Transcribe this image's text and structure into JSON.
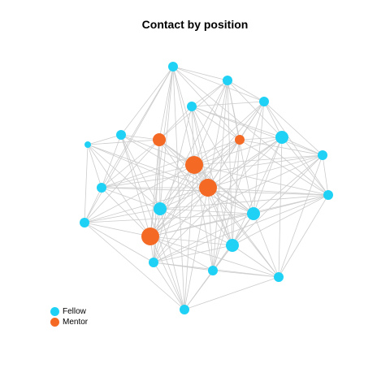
{
  "title": "Contact by position",
  "colors": {
    "fellow": "#1fd2f5",
    "mentor": "#f46a25",
    "edge": "#cccccc"
  },
  "legend": [
    {
      "label": "Fellow",
      "group": "fellow"
    },
    {
      "label": "Mentor",
      "group": "mentor"
    }
  ],
  "nodes": [
    {
      "id": "n1",
      "group": "fellow",
      "weight": 1
    },
    {
      "id": "n2",
      "group": "fellow",
      "weight": 1
    },
    {
      "id": "n3",
      "group": "fellow",
      "weight": 1
    },
    {
      "id": "n4",
      "group": "fellow",
      "weight": 1
    },
    {
      "id": "n5",
      "group": "fellow",
      "weight": 1
    },
    {
      "id": "n6",
      "group": "fellow",
      "weight": 2
    },
    {
      "id": "n7",
      "group": "fellow",
      "weight": 0
    },
    {
      "id": "n8",
      "group": "fellow",
      "weight": 1
    },
    {
      "id": "n9",
      "group": "fellow",
      "weight": 1
    },
    {
      "id": "n10",
      "group": "fellow",
      "weight": 1
    },
    {
      "id": "n11",
      "group": "fellow",
      "weight": 2
    },
    {
      "id": "n12",
      "group": "fellow",
      "weight": 2
    },
    {
      "id": "n13",
      "group": "fellow",
      "weight": 1
    },
    {
      "id": "n14",
      "group": "fellow",
      "weight": 2
    },
    {
      "id": "n15",
      "group": "fellow",
      "weight": 1
    },
    {
      "id": "n16",
      "group": "fellow",
      "weight": 1
    },
    {
      "id": "n17",
      "group": "fellow",
      "weight": 1
    },
    {
      "id": "n18",
      "group": "fellow",
      "weight": 1
    },
    {
      "id": "m1",
      "group": "mentor",
      "weight": 2
    },
    {
      "id": "m2",
      "group": "mentor",
      "weight": 1
    },
    {
      "id": "m3",
      "group": "mentor",
      "weight": 3
    },
    {
      "id": "m4",
      "group": "mentor",
      "weight": 3
    },
    {
      "id": "m5",
      "group": "mentor",
      "weight": 3
    }
  ],
  "edges": [
    [
      "m1",
      "n1"
    ],
    [
      "m1",
      "n2"
    ],
    [
      "m1",
      "n4"
    ],
    [
      "m1",
      "n5"
    ],
    [
      "m1",
      "n7"
    ],
    [
      "m1",
      "n8"
    ],
    [
      "m1",
      "n9"
    ],
    [
      "m1",
      "n11"
    ],
    [
      "m1",
      "n12"
    ],
    [
      "m1",
      "n14"
    ],
    [
      "m1",
      "m3"
    ],
    [
      "m1",
      "m4"
    ],
    [
      "m1",
      "m5"
    ],
    [
      "m1",
      "n15"
    ],
    [
      "m2",
      "n1"
    ],
    [
      "m2",
      "n2"
    ],
    [
      "m2",
      "n3"
    ],
    [
      "m2",
      "n4"
    ],
    [
      "m2",
      "n6"
    ],
    [
      "m2",
      "n8"
    ],
    [
      "m2",
      "n10"
    ],
    [
      "m2",
      "n11"
    ],
    [
      "m2",
      "n13"
    ],
    [
      "m2",
      "n14"
    ],
    [
      "m2",
      "m3"
    ],
    [
      "m2",
      "m4"
    ],
    [
      "m2",
      "m5"
    ],
    [
      "m2",
      "n17"
    ],
    [
      "m3",
      "n1"
    ],
    [
      "m3",
      "n2"
    ],
    [
      "m3",
      "n3"
    ],
    [
      "m3",
      "n4"
    ],
    [
      "m3",
      "n5"
    ],
    [
      "m3",
      "n6"
    ],
    [
      "m3",
      "n8"
    ],
    [
      "m3",
      "n9"
    ],
    [
      "m3",
      "n10"
    ],
    [
      "m3",
      "n11"
    ],
    [
      "m3",
      "n12"
    ],
    [
      "m3",
      "n13"
    ],
    [
      "m3",
      "n14"
    ],
    [
      "m3",
      "n15"
    ],
    [
      "m3",
      "n16"
    ],
    [
      "m3",
      "n17"
    ],
    [
      "m3",
      "n18"
    ],
    [
      "m3",
      "m4"
    ],
    [
      "m3",
      "m5"
    ],
    [
      "m4",
      "n1"
    ],
    [
      "m4",
      "n2"
    ],
    [
      "m4",
      "n3"
    ],
    [
      "m4",
      "n4"
    ],
    [
      "m4",
      "n6"
    ],
    [
      "m4",
      "n7"
    ],
    [
      "m4",
      "n8"
    ],
    [
      "m4",
      "n9"
    ],
    [
      "m4",
      "n10"
    ],
    [
      "m4",
      "n11"
    ],
    [
      "m4",
      "n12"
    ],
    [
      "m4",
      "n13"
    ],
    [
      "m4",
      "n14"
    ],
    [
      "m4",
      "n15"
    ],
    [
      "m4",
      "n16"
    ],
    [
      "m4",
      "n17"
    ],
    [
      "m4",
      "n18"
    ],
    [
      "m4",
      "m5"
    ],
    [
      "m5",
      "n1"
    ],
    [
      "m5",
      "n3"
    ],
    [
      "m5",
      "n5"
    ],
    [
      "m5",
      "n6"
    ],
    [
      "m5",
      "n7"
    ],
    [
      "m5",
      "n8"
    ],
    [
      "m5",
      "n9"
    ],
    [
      "m5",
      "n10"
    ],
    [
      "m5",
      "n11"
    ],
    [
      "m5",
      "n12"
    ],
    [
      "m5",
      "n13"
    ],
    [
      "m5",
      "n14"
    ],
    [
      "m5",
      "n15"
    ],
    [
      "m5",
      "n16"
    ],
    [
      "m5",
      "n17"
    ],
    [
      "m5",
      "n18"
    ],
    [
      "n1",
      "n2"
    ],
    [
      "n1",
      "n3"
    ],
    [
      "n1",
      "n5"
    ],
    [
      "n1",
      "n8"
    ],
    [
      "n1",
      "n9"
    ],
    [
      "n1",
      "n11"
    ],
    [
      "n1",
      "n13"
    ],
    [
      "n1",
      "n16"
    ],
    [
      "n2",
      "n3"
    ],
    [
      "n2",
      "n4"
    ],
    [
      "n2",
      "n6"
    ],
    [
      "n2",
      "n11"
    ],
    [
      "n2",
      "n12"
    ],
    [
      "n2",
      "n14"
    ],
    [
      "n2",
      "n17"
    ],
    [
      "n3",
      "n4"
    ],
    [
      "n3",
      "n6"
    ],
    [
      "n3",
      "n10"
    ],
    [
      "n3",
      "n12"
    ],
    [
      "n3",
      "n13"
    ],
    [
      "n3",
      "n17"
    ],
    [
      "n4",
      "n6"
    ],
    [
      "n4",
      "n10"
    ],
    [
      "n4",
      "n12"
    ],
    [
      "n4",
      "n14"
    ],
    [
      "n4",
      "n15"
    ],
    [
      "n5",
      "n7"
    ],
    [
      "n5",
      "n8"
    ],
    [
      "n5",
      "n11"
    ],
    [
      "n5",
      "n16"
    ],
    [
      "n5",
      "n12"
    ],
    [
      "n6",
      "n10"
    ],
    [
      "n6",
      "n12"
    ],
    [
      "n6",
      "n13"
    ],
    [
      "n6",
      "n14"
    ],
    [
      "n6",
      "n15"
    ],
    [
      "n6",
      "n18"
    ],
    [
      "n7",
      "n8"
    ],
    [
      "n7",
      "n9"
    ],
    [
      "n7",
      "n11"
    ],
    [
      "n7",
      "n12"
    ],
    [
      "n8",
      "n9"
    ],
    [
      "n8",
      "n11"
    ],
    [
      "n8",
      "n13"
    ],
    [
      "n8",
      "n10"
    ],
    [
      "n9",
      "n11"
    ],
    [
      "n9",
      "n15"
    ],
    [
      "n9",
      "n16"
    ],
    [
      "n9",
      "n12"
    ],
    [
      "n10",
      "n12"
    ],
    [
      "n10",
      "n13"
    ],
    [
      "n10",
      "n14"
    ],
    [
      "n10",
      "n18"
    ],
    [
      "n11",
      "n13"
    ],
    [
      "n11",
      "n14"
    ],
    [
      "n11",
      "n15"
    ],
    [
      "n11",
      "n16"
    ],
    [
      "n11",
      "n12"
    ],
    [
      "n12",
      "n13"
    ],
    [
      "n12",
      "n14"
    ],
    [
      "n12",
      "n15"
    ],
    [
      "n12",
      "n17"
    ],
    [
      "n12",
      "n18"
    ],
    [
      "n13",
      "n14"
    ],
    [
      "n13",
      "n18"
    ],
    [
      "n13",
      "n15"
    ],
    [
      "n14",
      "n15"
    ],
    [
      "n14",
      "n16"
    ],
    [
      "n14",
      "n17"
    ],
    [
      "n14",
      "n18"
    ],
    [
      "n15",
      "n16"
    ],
    [
      "n15",
      "n17"
    ],
    [
      "n15",
      "n18"
    ],
    [
      "n16",
      "n17"
    ],
    [
      "n17",
      "n18"
    ],
    [
      "n16",
      "n18"
    ]
  ]
}
